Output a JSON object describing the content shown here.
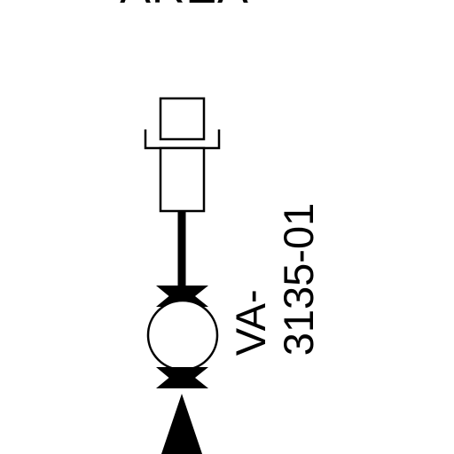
{
  "area_label": "AREA",
  "valve": {
    "tag_line1": "VA-",
    "tag_line2": "3135-01"
  },
  "colors": {
    "ink": "#000000",
    "paper": "#ffffff"
  }
}
